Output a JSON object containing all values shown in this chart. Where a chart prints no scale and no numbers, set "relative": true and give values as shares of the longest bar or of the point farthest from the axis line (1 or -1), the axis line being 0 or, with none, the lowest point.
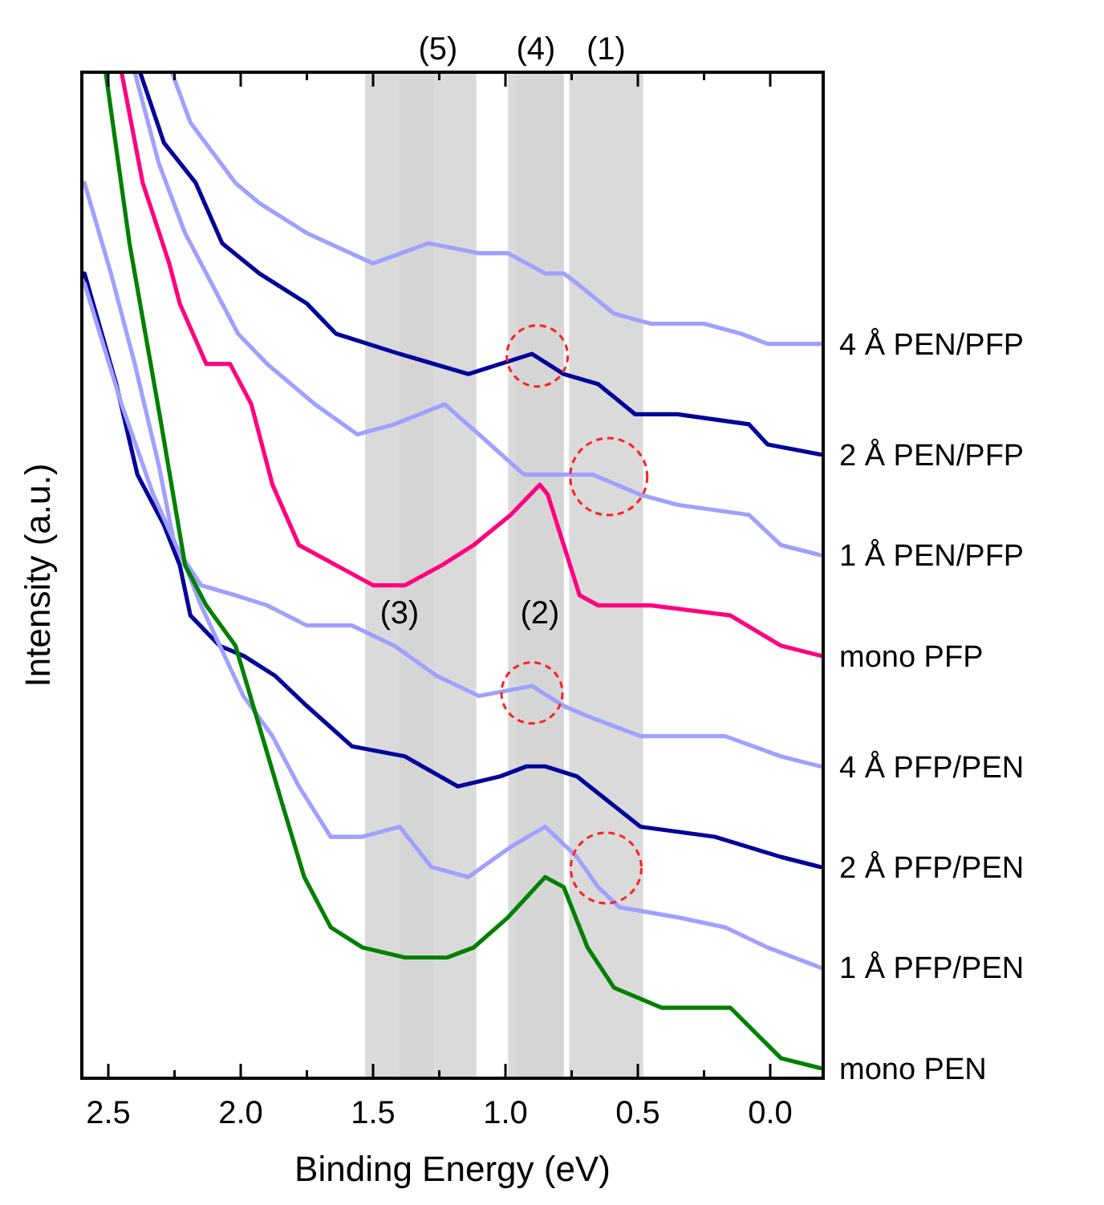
{
  "chart_data": {
    "type": "line",
    "relative": true,
    "xlabel": "Binding Energy (eV)",
    "ylabel": "Intensity (a.u.)",
    "xlim": [
      2.6,
      -0.2
    ],
    "xticks": [
      2.5,
      {
        "value": 2.25,
        "label": null
      },
      "2.0",
      {
        "value": 1.75,
        "label": null
      },
      1.5,
      {
        "value": 1.25,
        "label": null
      },
      "1.0",
      {
        "value": 0.75,
        "label": null
      },
      0.5,
      {
        "value": 0.25,
        "label": null
      },
      "0.0"
    ],
    "bands": [
      {
        "axis": "x",
        "from": 1.4,
        "to": 1.11,
        "label": "(5)",
        "color": "#d3d3d3"
      },
      {
        "axis": "x",
        "from": 0.99,
        "to": 0.78,
        "label": "(4)",
        "color": "#d3d3d3"
      },
      {
        "axis": "x",
        "from": 0.76,
        "to": 0.48,
        "label": "(1)",
        "color": "#d3d3d3"
      },
      {
        "axis": "x",
        "from": 1.53,
        "to": 1.27,
        "label": "(3)",
        "color": "#d3d3d3"
      },
      {
        "axis": "x",
        "from": 0.96,
        "to": 0.78,
        "label": "(2)",
        "color": "#d3d3d3"
      }
    ],
    "series": [
      {
        "name": "4 Å PEN/PFP",
        "color": "#a0a0ff",
        "x": [
          2.26,
          2.19,
          2.02,
          1.93,
          1.75,
          1.5,
          1.29,
          1.1,
          0.99,
          0.85,
          0.78,
          0.73,
          0.59,
          0.45,
          0.25,
          0.11,
          0.01,
          -0.19
        ],
        "values": [
          1.0,
          0.95,
          0.89,
          0.87,
          0.84,
          0.81,
          0.83,
          0.82,
          0.82,
          0.8,
          0.8,
          0.79,
          0.76,
          0.75,
          0.75,
          0.74,
          0.73,
          0.73
        ]
      },
      {
        "name": "2 Å PEN/PFP",
        "color": "#000099",
        "x": [
          2.38,
          2.29,
          2.17,
          2.07,
          1.93,
          1.75,
          1.64,
          1.4,
          1.14,
          0.9,
          0.78,
          0.65,
          0.51,
          0.35,
          0.08,
          0.01,
          -0.19
        ],
        "values": [
          1.0,
          0.93,
          0.89,
          0.83,
          0.8,
          0.77,
          0.74,
          0.72,
          0.7,
          0.72,
          0.7,
          0.69,
          0.66,
          0.66,
          0.65,
          0.63,
          0.62
        ]
      },
      {
        "name": "1 Å PEN/PFP",
        "color": "#a0a0ff",
        "x": [
          2.4,
          2.31,
          2.21,
          2.13,
          2.01,
          1.9,
          1.72,
          1.56,
          1.42,
          1.23,
          1.1,
          0.93,
          0.85,
          0.67,
          0.49,
          0.35,
          0.08,
          -0.04,
          -0.19
        ],
        "values": [
          1.0,
          0.91,
          0.84,
          0.8,
          0.74,
          0.71,
          0.67,
          0.64,
          0.65,
          0.67,
          0.64,
          0.6,
          0.6,
          0.6,
          0.58,
          0.57,
          0.56,
          0.53,
          0.52
        ]
      },
      {
        "name": "mono PFP",
        "color": "#ff0080",
        "x": [
          2.45,
          2.37,
          2.27,
          2.23,
          2.13,
          2.04,
          1.96,
          1.88,
          1.78,
          1.64,
          1.5,
          1.38,
          1.24,
          1.12,
          0.98,
          0.87,
          0.84,
          0.78,
          0.72,
          0.65,
          0.45,
          0.15,
          -0.04,
          -0.19
        ],
        "values": [
          1.0,
          0.89,
          0.81,
          0.77,
          0.71,
          0.71,
          0.67,
          0.59,
          0.53,
          0.51,
          0.49,
          0.49,
          0.51,
          0.53,
          0.56,
          0.59,
          0.58,
          0.53,
          0.48,
          0.47,
          0.47,
          0.46,
          0.43,
          0.42
        ]
      },
      {
        "name": "4 Å PFP/PEN",
        "color": "#a0a0ff",
        "x": [
          2.59,
          2.49,
          2.4,
          2.31,
          2.25,
          2.15,
          2.02,
          1.9,
          1.75,
          1.58,
          1.42,
          1.26,
          1.1,
          0.9,
          0.78,
          0.69,
          0.49,
          0.17,
          -0.04,
          -0.19
        ],
        "values": [
          0.89,
          0.8,
          0.71,
          0.61,
          0.53,
          0.49,
          0.48,
          0.47,
          0.45,
          0.45,
          0.43,
          0.4,
          0.38,
          0.39,
          0.37,
          0.36,
          0.34,
          0.34,
          0.32,
          0.31
        ]
      },
      {
        "name": "2 Å PFP/PEN",
        "color": "#000099",
        "x": [
          2.59,
          2.47,
          2.39,
          2.29,
          2.23,
          2.19,
          2.08,
          1.99,
          1.87,
          1.75,
          1.58,
          1.38,
          1.18,
          1.02,
          0.92,
          0.85,
          0.73,
          0.49,
          0.21,
          -0.04,
          -0.19
        ],
        "values": [
          0.8,
          0.69,
          0.6,
          0.55,
          0.51,
          0.46,
          0.43,
          0.42,
          0.4,
          0.37,
          0.33,
          0.32,
          0.29,
          0.3,
          0.31,
          0.31,
          0.3,
          0.25,
          0.24,
          0.22,
          0.21
        ]
      },
      {
        "name": "1 Å PFP/PEN",
        "color": "#a0a0ff",
        "x": [
          2.59,
          2.45,
          2.33,
          2.21,
          2.15,
          1.99,
          1.88,
          1.78,
          1.66,
          1.54,
          1.4,
          1.28,
          1.14,
          0.98,
          0.85,
          0.73,
          0.65,
          0.57,
          0.35,
          0.17,
          0.01,
          -0.19
        ],
        "values": [
          0.79,
          0.67,
          0.58,
          0.51,
          0.47,
          0.38,
          0.34,
          0.29,
          0.24,
          0.24,
          0.25,
          0.21,
          0.2,
          0.23,
          0.25,
          0.22,
          0.19,
          0.17,
          0.16,
          0.15,
          0.13,
          0.11
        ]
      },
      {
        "name": "mono PEN",
        "color": "#008000",
        "x": [
          2.51,
          2.42,
          2.36,
          2.3,
          2.21,
          2.13,
          2.02,
          1.93,
          1.84,
          1.76,
          1.66,
          1.54,
          1.38,
          1.22,
          1.12,
          0.99,
          0.85,
          0.78,
          0.69,
          0.59,
          0.41,
          0.15,
          -0.04,
          -0.19
        ],
        "values": [
          1.0,
          0.83,
          0.74,
          0.65,
          0.51,
          0.47,
          0.43,
          0.35,
          0.27,
          0.2,
          0.15,
          0.13,
          0.12,
          0.12,
          0.13,
          0.16,
          0.2,
          0.19,
          0.13,
          0.09,
          0.07,
          0.07,
          0.02,
          0.01
        ]
      }
    ]
  }
}
